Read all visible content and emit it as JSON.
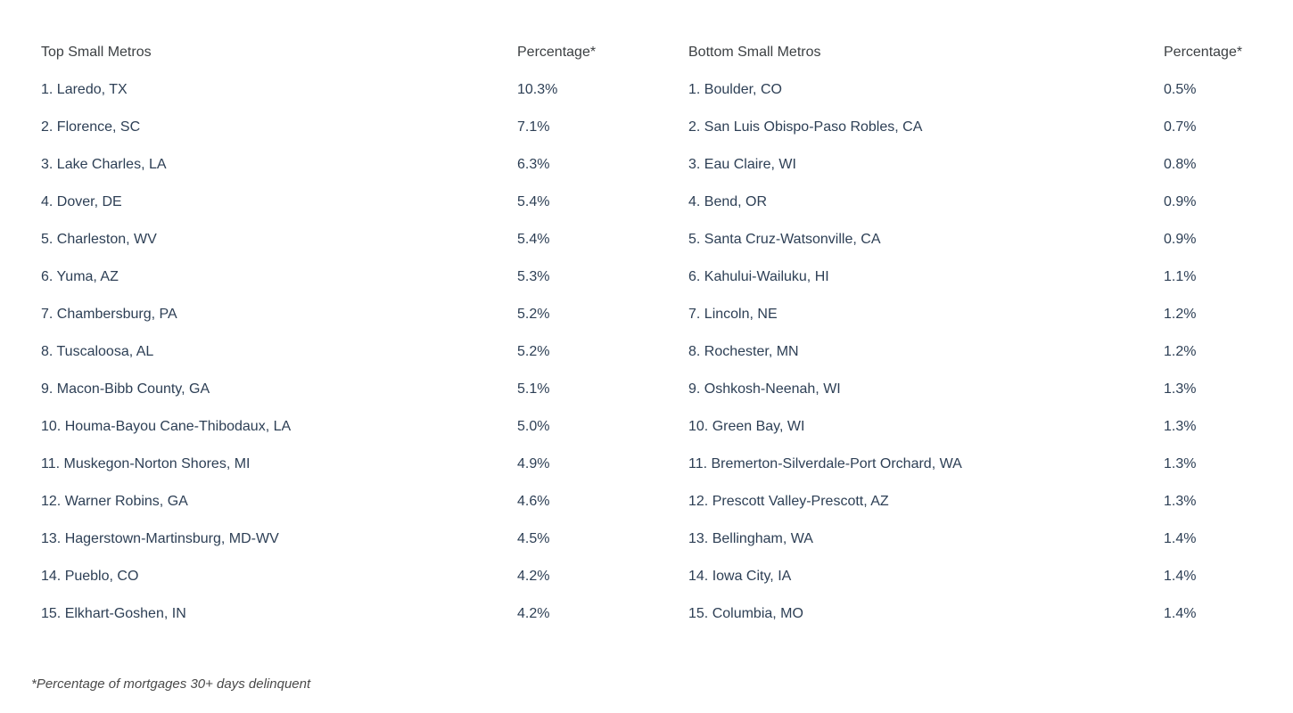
{
  "colors": {
    "background": "#ffffff",
    "header_text": "#3c4043",
    "body_text": "#2d3f55",
    "footnote_text": "#4a4a4a"
  },
  "left_table": {
    "title": "Top Small Metros",
    "percentage_header": "Percentage*",
    "rows": [
      {
        "label": "1. Laredo, TX",
        "pct": "10.3%"
      },
      {
        "label": "2. Florence, SC",
        "pct": "7.1%"
      },
      {
        "label": "3. Lake Charles, LA",
        "pct": "6.3%"
      },
      {
        "label": "4. Dover, DE",
        "pct": "5.4%"
      },
      {
        "label": "5. Charleston, WV",
        "pct": "5.4%"
      },
      {
        "label": "6. Yuma, AZ",
        "pct": "5.3%"
      },
      {
        "label": "7. Chambersburg, PA",
        "pct": "5.2%"
      },
      {
        "label": "8. Tuscaloosa, AL",
        "pct": "5.2%"
      },
      {
        "label": "9. Macon-Bibb County, GA",
        "pct": "5.1%"
      },
      {
        "label": "10. Houma-Bayou Cane-Thibodaux, LA",
        "pct": "5.0%"
      },
      {
        "label": "11. Muskegon-Norton Shores, MI",
        "pct": "4.9%"
      },
      {
        "label": "12. Warner Robins, GA",
        "pct": "4.6%"
      },
      {
        "label": "13. Hagerstown-Martinsburg, MD-WV",
        "pct": "4.5%"
      },
      {
        "label": "14. Pueblo, CO",
        "pct": "4.2%"
      },
      {
        "label": "15. Elkhart-Goshen, IN",
        "pct": "4.2%"
      }
    ]
  },
  "right_table": {
    "title": "Bottom Small Metros",
    "percentage_header": "Percentage*",
    "rows": [
      {
        "label": "1. Boulder, CO",
        "pct": "0.5%"
      },
      {
        "label": "2. San Luis Obispo-Paso Robles, CA",
        "pct": "0.7%"
      },
      {
        "label": "3. Eau Claire, WI",
        "pct": "0.8%"
      },
      {
        "label": "4. Bend, OR",
        "pct": "0.9%"
      },
      {
        "label": "5. Santa Cruz-Watsonville, CA",
        "pct": "0.9%"
      },
      {
        "label": "6. Kahului-Wailuku, HI",
        "pct": "1.1%"
      },
      {
        "label": "7. Lincoln, NE",
        "pct": "1.2%"
      },
      {
        "label": "8. Rochester, MN",
        "pct": "1.2%"
      },
      {
        "label": "9. Oshkosh-Neenah, WI",
        "pct": "1.3%"
      },
      {
        "label": "10. Green Bay, WI",
        "pct": "1.3%"
      },
      {
        "label": "11. Bremerton-Silverdale-Port Orchard, WA",
        "pct": "1.3%"
      },
      {
        "label": "12. Prescott Valley-Prescott, AZ",
        "pct": "1.3%"
      },
      {
        "label": "13. Bellingham, WA",
        "pct": "1.4%"
      },
      {
        "label": "14. Iowa City, IA",
        "pct": "1.4%"
      },
      {
        "label": "15. Columbia, MO",
        "pct": "1.4%"
      }
    ]
  },
  "footnote": "*Percentage of mortgages 30+ days delinquent",
  "chart_data": [
    {
      "type": "table",
      "title": "Top Small Metros",
      "columns": [
        "Metro",
        "Percentage*"
      ],
      "rows": [
        [
          "Laredo, TX",
          10.3
        ],
        [
          "Florence, SC",
          7.1
        ],
        [
          "Lake Charles, LA",
          6.3
        ],
        [
          "Dover, DE",
          5.4
        ],
        [
          "Charleston, WV",
          5.4
        ],
        [
          "Yuma, AZ",
          5.3
        ],
        [
          "Chambersburg, PA",
          5.2
        ],
        [
          "Tuscaloosa, AL",
          5.2
        ],
        [
          "Macon-Bibb County, GA",
          5.1
        ],
        [
          "Houma-Bayou Cane-Thibodaux, LA",
          5.0
        ],
        [
          "Muskegon-Norton Shores, MI",
          4.9
        ],
        [
          "Warner Robins, GA",
          4.6
        ],
        [
          "Hagerstown-Martinsburg, MD-WV",
          4.5
        ],
        [
          "Pueblo, CO",
          4.2
        ],
        [
          "Elkhart-Goshen, IN",
          4.2
        ]
      ],
      "units": "percent",
      "note": "*Percentage of mortgages 30+ days delinquent"
    },
    {
      "type": "table",
      "title": "Bottom Small Metros",
      "columns": [
        "Metro",
        "Percentage*"
      ],
      "rows": [
        [
          "Boulder, CO",
          0.5
        ],
        [
          "San Luis Obispo-Paso Robles, CA",
          0.7
        ],
        [
          "Eau Claire, WI",
          0.8
        ],
        [
          "Bend, OR",
          0.9
        ],
        [
          "Santa Cruz-Watsonville, CA",
          0.9
        ],
        [
          "Kahului-Wailuku, HI",
          1.1
        ],
        [
          "Lincoln, NE",
          1.2
        ],
        [
          "Rochester, MN",
          1.2
        ],
        [
          "Oshkosh-Neenah, WI",
          1.3
        ],
        [
          "Green Bay, WI",
          1.3
        ],
        [
          "Bremerton-Silverdale-Port Orchard, WA",
          1.3
        ],
        [
          "Prescott Valley-Prescott, AZ",
          1.3
        ],
        [
          "Bellingham, WA",
          1.4
        ],
        [
          "Iowa City, IA",
          1.4
        ],
        [
          "Columbia, MO",
          1.4
        ]
      ],
      "units": "percent",
      "note": "*Percentage of mortgages 30+ days delinquent"
    }
  ]
}
